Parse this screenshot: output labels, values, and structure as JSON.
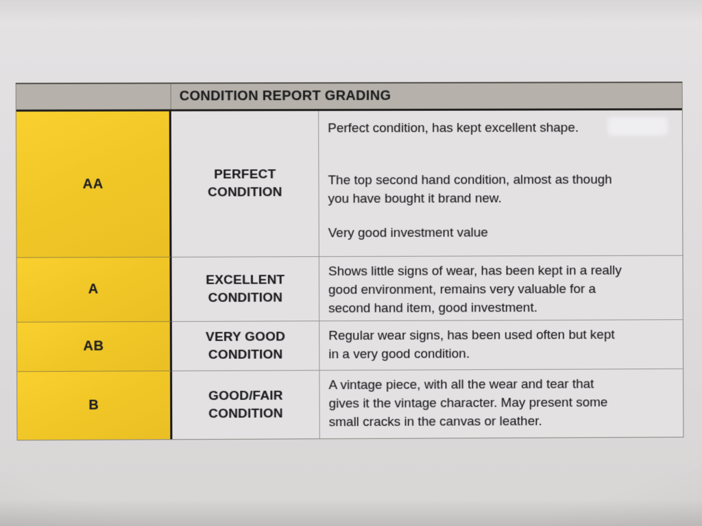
{
  "document": {
    "title": "CONDITION REPORT GRADING",
    "colors": {
      "paper": "#dedcdd",
      "header_bg": "#b6b2ab",
      "grade_bg": "#f1c727",
      "cell_bg": "#e3e1e2",
      "text": "#1d1d1f"
    },
    "rows": [
      {
        "grade": "AA",
        "condition": "PERFECT\nCONDITION",
        "descriptions": [
          "Perfect condition, has kept excellent shape.",
          "The top second hand condition, almost as though\nyou have bought it brand new.",
          "Very good investment value"
        ]
      },
      {
        "grade": "A",
        "condition": "EXCELLENT\nCONDITION",
        "descriptions": [
          "Shows little signs of wear, has been kept in a really\ngood environment, remains very valuable for a\nsecond hand item, good investment."
        ]
      },
      {
        "grade": "AB",
        "condition": "VERY GOOD\nCONDITION",
        "descriptions": [
          "Regular wear signs, has been used often but kept\nin a very good condition."
        ]
      },
      {
        "grade": "B",
        "condition": "GOOD/FAIR\nCONDITION",
        "descriptions": [
          "A vintage piece, with all the wear and tear that\ngives it the vintage character. May present some\nsmall cracks in the canvas or leather."
        ]
      }
    ]
  }
}
